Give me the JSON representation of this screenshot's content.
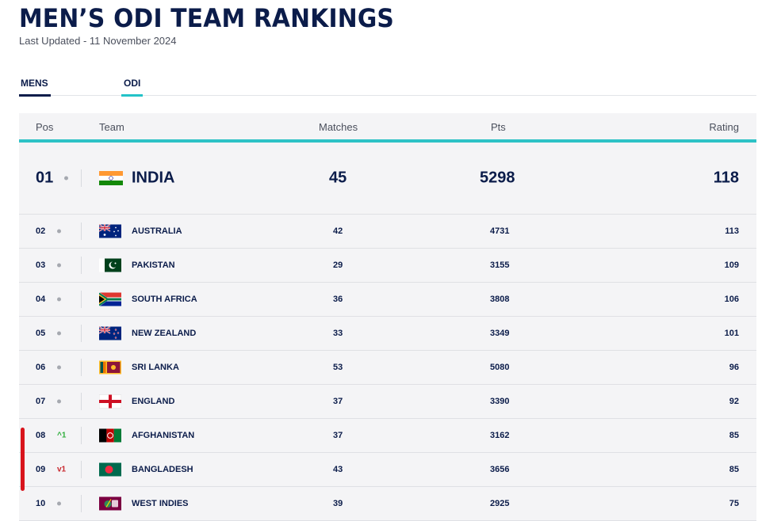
{
  "page": {
    "title": "MEN’S ODI TEAM RANKINGS",
    "last_updated": "Last Updated - 11 November 2024"
  },
  "tabs": [
    {
      "label": "MENS",
      "active": true
    },
    {
      "label": "ODI",
      "active": true
    }
  ],
  "table": {
    "headers": {
      "pos": "Pos",
      "team": "Team",
      "matches": "Matches",
      "pts": "Pts",
      "rating": "Rating"
    },
    "rows": [
      {
        "pos": "01",
        "movement": "",
        "team": "INDIA",
        "flag": "india-flag-icon",
        "matches": "45",
        "pts": "5298",
        "rating": "118"
      },
      {
        "pos": "02",
        "movement": "",
        "team": "AUSTRALIA",
        "flag": "australia-flag-icon",
        "matches": "42",
        "pts": "4731",
        "rating": "113"
      },
      {
        "pos": "03",
        "movement": "",
        "team": "PAKISTAN",
        "flag": "pakistan-flag-icon",
        "matches": "29",
        "pts": "3155",
        "rating": "109"
      },
      {
        "pos": "04",
        "movement": "",
        "team": "SOUTH AFRICA",
        "flag": "south-africa-flag-icon",
        "matches": "36",
        "pts": "3808",
        "rating": "106"
      },
      {
        "pos": "05",
        "movement": "",
        "team": "NEW ZEALAND",
        "flag": "new-zealand-flag-icon",
        "matches": "33",
        "pts": "3349",
        "rating": "101"
      },
      {
        "pos": "06",
        "movement": "",
        "team": "SRI LANKA",
        "flag": "sri-lanka-flag-icon",
        "matches": "53",
        "pts": "5080",
        "rating": "96"
      },
      {
        "pos": "07",
        "movement": "",
        "team": "ENGLAND",
        "flag": "england-flag-icon",
        "matches": "37",
        "pts": "3390",
        "rating": "92"
      },
      {
        "pos": "08",
        "movement": "^1",
        "team": "AFGHANISTAN",
        "flag": "afghanistan-flag-icon",
        "matches": "37",
        "pts": "3162",
        "rating": "85"
      },
      {
        "pos": "09",
        "movement": "v1",
        "team": "BANGLADESH",
        "flag": "bangladesh-flag-icon",
        "matches": "43",
        "pts": "3656",
        "rating": "85"
      },
      {
        "pos": "10",
        "movement": "",
        "team": "WEST INDIES",
        "flag": "west-indies-flag-icon",
        "matches": "39",
        "pts": "2925",
        "rating": "75"
      }
    ]
  },
  "colors": {
    "navy": "#0b1c4a",
    "accent": "#2dc2c6",
    "up": "#2fae3c",
    "down": "#c8262c",
    "annotation": "#d8141c"
  }
}
